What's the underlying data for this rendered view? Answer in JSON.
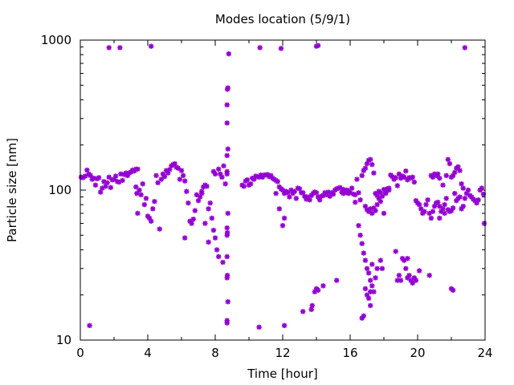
{
  "chart_data": {
    "type": "scatter",
    "title": "Modes location (5/9/1)",
    "xlabel": "Time [hour]",
    "ylabel": "Particle size [nm]",
    "xlim": [
      0,
      24
    ],
    "ylim": [
      10,
      1000
    ],
    "yscale": "log",
    "grid": false,
    "marker": "asterisk",
    "color": "#9400d3",
    "x_ticks": [
      0,
      4,
      8,
      12,
      16,
      20,
      24
    ],
    "x_tick_labels": [
      "0",
      "4",
      "8",
      "12",
      "16",
      "20",
      "24"
    ],
    "y_ticks": [
      10,
      100,
      1000
    ],
    "y_tick_labels": [
      "10",
      "100",
      "1000"
    ],
    "points": [
      [
        0.05,
        122
      ],
      [
        0.15,
        121
      ],
      [
        0.3,
        124
      ],
      [
        0.4,
        136
      ],
      [
        0.5,
        128
      ],
      [
        0.6,
        125
      ],
      [
        0.7,
        118
      ],
      [
        0.8,
        120
      ],
      [
        0.9,
        108
      ],
      [
        1.0,
        119
      ],
      [
        1.1,
        121
      ],
      [
        1.2,
        97
      ],
      [
        1.3,
        103
      ],
      [
        1.4,
        114
      ],
      [
        1.5,
        106
      ],
      [
        1.6,
        112
      ],
      [
        1.7,
        122
      ],
      [
        1.8,
        104
      ],
      [
        1.9,
        117
      ],
      [
        2.0,
        118
      ],
      [
        2.1,
        124
      ],
      [
        2.2,
        114
      ],
      [
        2.3,
        113
      ],
      [
        2.4,
        128
      ],
      [
        2.5,
        116
      ],
      [
        2.6,
        127
      ],
      [
        2.7,
        130
      ],
      [
        2.8,
        125
      ],
      [
        2.9,
        130
      ],
      [
        3.0,
        132
      ],
      [
        3.1,
        136
      ],
      [
        3.2,
        134
      ],
      [
        3.3,
        138
      ],
      [
        3.4,
        138
      ],
      [
        0.55,
        12.5
      ],
      [
        1.7,
        890
      ],
      [
        2.35,
        890
      ],
      [
        4.2,
        910
      ],
      [
        3.3,
        105
      ],
      [
        3.35,
        95
      ],
      [
        3.4,
        70
      ],
      [
        3.5,
        100
      ],
      [
        3.6,
        93
      ],
      [
        3.7,
        110
      ],
      [
        3.8,
        80
      ],
      [
        3.9,
        88
      ],
      [
        4.0,
        67
      ],
      [
        4.1,
        65
      ],
      [
        4.2,
        62
      ],
      [
        4.3,
        75
      ],
      [
        4.4,
        84
      ],
      [
        4.5,
        125
      ],
      [
        4.6,
        112
      ],
      [
        4.7,
        55
      ],
      [
        4.8,
        118
      ],
      [
        4.9,
        128
      ],
      [
        5.0,
        123
      ],
      [
        5.1,
        135
      ],
      [
        5.2,
        130
      ],
      [
        5.3,
        137
      ],
      [
        5.4,
        145
      ],
      [
        5.5,
        148
      ],
      [
        5.6,
        150
      ],
      [
        5.7,
        142
      ],
      [
        5.8,
        140
      ],
      [
        5.9,
        118
      ],
      [
        6.0,
        135
      ],
      [
        6.1,
        125
      ],
      [
        6.2,
        115
      ],
      [
        6.3,
        98
      ],
      [
        6.2,
        48
      ],
      [
        6.4,
        82
      ],
      [
        6.5,
        62
      ],
      [
        6.6,
        60
      ],
      [
        6.7,
        64
      ],
      [
        6.8,
        73
      ],
      [
        6.9,
        93
      ],
      [
        7.0,
        85
      ],
      [
        7.1,
        90
      ],
      [
        7.2,
        98
      ],
      [
        7.3,
        105
      ],
      [
        7.4,
        108
      ],
      [
        7.5,
        106
      ],
      [
        7.6,
        75
      ],
      [
        7.7,
        82
      ],
      [
        7.8,
        65
      ],
      [
        7.9,
        54
      ],
      [
        8.0,
        48
      ],
      [
        8.1,
        40
      ],
      [
        8.2,
        36
      ],
      [
        8.0,
        128
      ],
      [
        7.9,
        133
      ],
      [
        8.2,
        138
      ],
      [
        8.3,
        128
      ],
      [
        8.4,
        122
      ],
      [
        8.5,
        145
      ],
      [
        8.6,
        110
      ],
      [
        8.45,
        33
      ],
      [
        7.2,
        95
      ],
      [
        7.4,
        60
      ],
      [
        7.6,
        45
      ],
      [
        8.7,
        13.5
      ],
      [
        8.7,
        13
      ],
      [
        8.75,
        18
      ],
      [
        8.7,
        26
      ],
      [
        8.72,
        27
      ],
      [
        8.7,
        36
      ],
      [
        8.7,
        50
      ],
      [
        8.72,
        52
      ],
      [
        8.7,
        56
      ],
      [
        8.75,
        70
      ],
      [
        8.7,
        128
      ],
      [
        8.7,
        133
      ],
      [
        8.7,
        170
      ],
      [
        8.75,
        188
      ],
      [
        8.7,
        280
      ],
      [
        8.7,
        370
      ],
      [
        8.72,
        470
      ],
      [
        8.75,
        480
      ],
      [
        8.8,
        810
      ],
      [
        9.6,
        108
      ],
      [
        9.7,
        106
      ],
      [
        9.8,
        115
      ],
      [
        9.9,
        117
      ],
      [
        10.0,
        108
      ],
      [
        10.1,
        110
      ],
      [
        10.2,
        120
      ],
      [
        10.3,
        118
      ],
      [
        10.4,
        124
      ],
      [
        10.5,
        123
      ],
      [
        10.6,
        122
      ],
      [
        10.7,
        126
      ],
      [
        10.8,
        122
      ],
      [
        10.9,
        126
      ],
      [
        11.0,
        126
      ],
      [
        11.1,
        127
      ],
      [
        11.2,
        123
      ],
      [
        11.3,
        125
      ],
      [
        11.4,
        120
      ],
      [
        11.5,
        118
      ],
      [
        11.6,
        116
      ],
      [
        11.7,
        114
      ],
      [
        11.8,
        105
      ],
      [
        11.9,
        102
      ],
      [
        12.0,
        100
      ],
      [
        12.1,
        95
      ],
      [
        12.2,
        98
      ],
      [
        12.3,
        96
      ],
      [
        12.4,
        90
      ],
      [
        12.5,
        100
      ],
      [
        12.6,
        95
      ],
      [
        12.7,
        98
      ],
      [
        12.8,
        88
      ],
      [
        12.9,
        103
      ],
      [
        13.0,
        102
      ],
      [
        10.6,
        12.2
      ],
      [
        10.65,
        890
      ],
      [
        11.9,
        880
      ],
      [
        12.1,
        12.5
      ],
      [
        11.8,
        75
      ],
      [
        12.0,
        58
      ],
      [
        12.1,
        65
      ],
      [
        11.6,
        95
      ],
      [
        13.1,
        96
      ],
      [
        13.2,
        96
      ],
      [
        13.3,
        91
      ],
      [
        13.4,
        87
      ],
      [
        13.5,
        90
      ],
      [
        13.6,
        86
      ],
      [
        13.7,
        92
      ],
      [
        13.8,
        95
      ],
      [
        13.9,
        97
      ],
      [
        14.0,
        96
      ],
      [
        14.1,
        90
      ],
      [
        14.2,
        86
      ],
      [
        14.3,
        91
      ],
      [
        14.4,
        92
      ],
      [
        14.5,
        96
      ],
      [
        14.6,
        93
      ],
      [
        14.7,
        97
      ],
      [
        14.8,
        91
      ],
      [
        14.9,
        96
      ],
      [
        15.0,
        94
      ],
      [
        15.1,
        100
      ],
      [
        15.2,
        102
      ],
      [
        15.3,
        103
      ],
      [
        15.4,
        104
      ],
      [
        15.5,
        97
      ],
      [
        15.6,
        101
      ],
      [
        15.7,
        96
      ],
      [
        15.8,
        100
      ],
      [
        15.9,
        98
      ],
      [
        16.0,
        96
      ],
      [
        16.2,
        94
      ],
      [
        16.3,
        93
      ],
      [
        13.2,
        15.5
      ],
      [
        13.7,
        16
      ],
      [
        13.75,
        17
      ],
      [
        13.9,
        21
      ],
      [
        14.0,
        22
      ],
      [
        14.1,
        21.5
      ],
      [
        14.4,
        23
      ],
      [
        14.0,
        910
      ],
      [
        14.1,
        920
      ],
      [
        15.2,
        25
      ],
      [
        15.6,
        95
      ],
      [
        15.9,
        95
      ],
      [
        16.1,
        103
      ],
      [
        16.3,
        83
      ],
      [
        16.4,
        118
      ],
      [
        16.5,
        96
      ],
      [
        16.6,
        86
      ],
      [
        16.7,
        125
      ],
      [
        16.8,
        135
      ],
      [
        16.9,
        140
      ],
      [
        17.0,
        150
      ],
      [
        17.1,
        158
      ],
      [
        17.2,
        160
      ],
      [
        17.3,
        148
      ],
      [
        17.4,
        130
      ],
      [
        17.5,
        95
      ],
      [
        17.6,
        92
      ],
      [
        17.7,
        98
      ],
      [
        17.8,
        96
      ],
      [
        17.9,
        91
      ],
      [
        18.0,
        101
      ],
      [
        18.1,
        95
      ],
      [
        18.2,
        101
      ],
      [
        18.3,
        103
      ],
      [
        18.4,
        126
      ],
      [
        18.5,
        123
      ],
      [
        18.6,
        118
      ],
      [
        18.7,
        121
      ],
      [
        18.8,
        107
      ],
      [
        18.9,
        128
      ],
      [
        19.0,
        120
      ],
      [
        19.1,
        124
      ],
      [
        19.2,
        122
      ],
      [
        19.3,
        134
      ],
      [
        19.4,
        117
      ],
      [
        19.5,
        121
      ],
      [
        19.6,
        120
      ],
      [
        19.7,
        122
      ],
      [
        19.8,
        113
      ],
      [
        16.5,
        58
      ],
      [
        16.6,
        50
      ],
      [
        16.7,
        44
      ],
      [
        16.8,
        38
      ],
      [
        16.9,
        34
      ],
      [
        17.0,
        30
      ],
      [
        17.1,
        28
      ],
      [
        17.2,
        25
      ],
      [
        17.3,
        23
      ],
      [
        17.4,
        21
      ],
      [
        16.7,
        14
      ],
      [
        16.8,
        14.5
      ],
      [
        16.9,
        22
      ],
      [
        17.0,
        20
      ],
      [
        17.1,
        19
      ],
      [
        17.2,
        21
      ],
      [
        17.2,
        17
      ],
      [
        17.3,
        32
      ],
      [
        17.5,
        26
      ],
      [
        17.6,
        30
      ],
      [
        17.8,
        34
      ],
      [
        17.9,
        30
      ],
      [
        18.7,
        39
      ],
      [
        18.8,
        25
      ],
      [
        18.9,
        27
      ],
      [
        19.0,
        25
      ],
      [
        19.1,
        35
      ],
      [
        19.2,
        34
      ],
      [
        19.3,
        30
      ],
      [
        19.4,
        26
      ],
      [
        19.5,
        27
      ],
      [
        19.6,
        25
      ],
      [
        19.7,
        24
      ],
      [
        19.8,
        26
      ],
      [
        19.9,
        25
      ],
      [
        19.4,
        35
      ],
      [
        20.1,
        29
      ],
      [
        20.7,
        27
      ],
      [
        16.9,
        78
      ],
      [
        17.0,
        74
      ],
      [
        17.1,
        72
      ],
      [
        17.2,
        75
      ],
      [
        17.3,
        70
      ],
      [
        17.4,
        76
      ],
      [
        17.5,
        73
      ],
      [
        17.6,
        80
      ],
      [
        17.7,
        88
      ],
      [
        17.8,
        84
      ],
      [
        18.0,
        70
      ],
      [
        18.1,
        96
      ],
      [
        18.2,
        102
      ],
      [
        18.3,
        100
      ],
      [
        19.9,
        85
      ],
      [
        20.0,
        82
      ],
      [
        20.1,
        80
      ],
      [
        20.2,
        75
      ],
      [
        20.3,
        70
      ],
      [
        20.4,
        72
      ],
      [
        20.5,
        80
      ],
      [
        20.6,
        86
      ],
      [
        20.7,
        70
      ],
      [
        20.8,
        65
      ],
      [
        20.9,
        72
      ],
      [
        21.0,
        78
      ],
      [
        21.1,
        82
      ],
      [
        21.2,
        83
      ],
      [
        21.3,
        78
      ],
      [
        21.4,
        72
      ],
      [
        21.5,
        75
      ],
      [
        21.6,
        80
      ],
      [
        21.7,
        88
      ],
      [
        21.8,
        74
      ],
      [
        21.9,
        72
      ],
      [
        22.0,
        73
      ],
      [
        22.1,
        76
      ],
      [
        22.2,
        95
      ],
      [
        22.3,
        85
      ],
      [
        22.4,
        88
      ],
      [
        22.5,
        90
      ],
      [
        22.6,
        75
      ],
      [
        22.7,
        78
      ],
      [
        22.8,
        88
      ],
      [
        22.9,
        95
      ],
      [
        23.0,
        100
      ],
      [
        23.1,
        92
      ],
      [
        23.2,
        90
      ],
      [
        23.3,
        87
      ],
      [
        23.4,
        85
      ],
      [
        23.5,
        82
      ],
      [
        23.6,
        86
      ],
      [
        23.7,
        100
      ],
      [
        23.8,
        103
      ],
      [
        23.9,
        94
      ],
      [
        23.95,
        60
      ],
      [
        20.8,
        125
      ],
      [
        20.9,
        122
      ],
      [
        21.0,
        128
      ],
      [
        21.1,
        125
      ],
      [
        21.2,
        128
      ],
      [
        21.3,
        120
      ],
      [
        21.5,
        108
      ],
      [
        21.7,
        125
      ],
      [
        21.8,
        160
      ],
      [
        21.9,
        150
      ],
      [
        22.0,
        122
      ],
      [
        22.1,
        125
      ],
      [
        22.2,
        131
      ],
      [
        22.3,
        140
      ],
      [
        22.4,
        143
      ],
      [
        22.5,
        135
      ],
      [
        22.6,
        110
      ],
      [
        22.7,
        103
      ],
      [
        21.3,
        65
      ],
      [
        21.6,
        70
      ],
      [
        22.0,
        22
      ],
      [
        22.1,
        21.5
      ],
      [
        22.8,
        890
      ]
    ]
  }
}
